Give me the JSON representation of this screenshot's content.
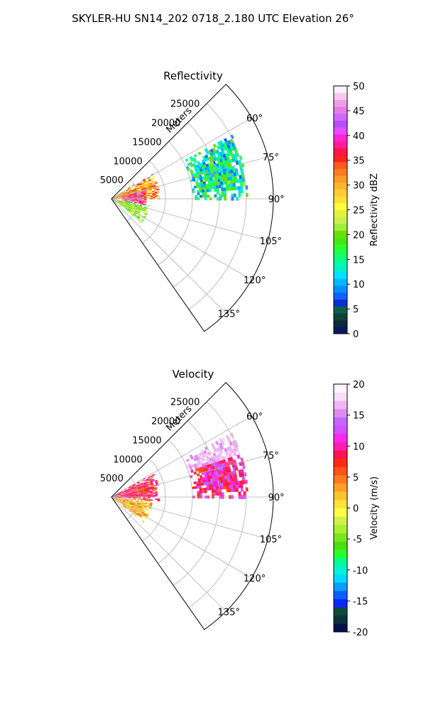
{
  "figure": {
    "title": "SKYLER-HU  SN14_202  0718_2.180 UTC Elevation 26°"
  },
  "chart_data": [
    {
      "type": "heatmap",
      "subtype": "polar-sector",
      "title": "Reflectivity",
      "radial_label": "Meters",
      "r_max": 30000,
      "r_ticks": [
        5000,
        10000,
        15000,
        20000,
        25000
      ],
      "theta_range_deg": [
        45,
        145
      ],
      "theta_ticks_deg": [
        60,
        75,
        90,
        105,
        120,
        135
      ],
      "theta_tick_labels": [
        "60°",
        "75°",
        "90°",
        "105°",
        "120°",
        "135°"
      ],
      "grid": true,
      "colorbar": {
        "label": "Reflectivity dBZ",
        "range": [
          0,
          50
        ],
        "ticks": [
          0,
          5,
          10,
          15,
          20,
          25,
          30,
          35,
          40,
          45,
          50
        ],
        "colormap": "pyart_HomeyerRainbow"
      },
      "echo_regions": [
        {
          "theta_deg": [
            57,
            90
          ],
          "range_m": [
            0,
            9000
          ],
          "value_dbz": 30
        },
        {
          "theta_deg": [
            75,
            100
          ],
          "range_m": [
            2000,
            6500
          ],
          "value_dbz": 38
        },
        {
          "theta_deg": [
            62,
            90
          ],
          "range_m": [
            15000,
            25000
          ],
          "value_dbz": 14
        },
        {
          "theta_deg": [
            100,
            128
          ],
          "range_m": [
            0,
            7000
          ],
          "value_dbz": 22
        }
      ]
    },
    {
      "type": "heatmap",
      "subtype": "polar-sector",
      "title": "Velocity",
      "radial_label": "Meters",
      "r_max": 30000,
      "r_ticks": [
        5000,
        10000,
        15000,
        20000,
        25000
      ],
      "theta_range_deg": [
        45,
        145
      ],
      "theta_ticks_deg": [
        60,
        75,
        90,
        105,
        120,
        135
      ],
      "theta_tick_labels": [
        "60°",
        "75°",
        "90°",
        "105°",
        "120°",
        "135°"
      ],
      "grid": true,
      "colorbar": {
        "label": "Velocity (m/s)",
        "range": [
          -20,
          20
        ],
        "ticks": [
          -20,
          -15,
          -10,
          -5,
          0,
          5,
          10,
          15,
          20
        ],
        "colormap": "pyart_BuDRd18"
      },
      "echo_regions": [
        {
          "theta_deg": [
            60,
            95
          ],
          "range_m": [
            0,
            9000
          ],
          "value_ms": 8
        },
        {
          "theta_deg": [
            95,
            128
          ],
          "range_m": [
            0,
            7500
          ],
          "value_ms": 2
        },
        {
          "theta_deg": [
            62,
            90
          ],
          "range_m": [
            15000,
            25000
          ],
          "value_ms": 10
        }
      ]
    }
  ]
}
